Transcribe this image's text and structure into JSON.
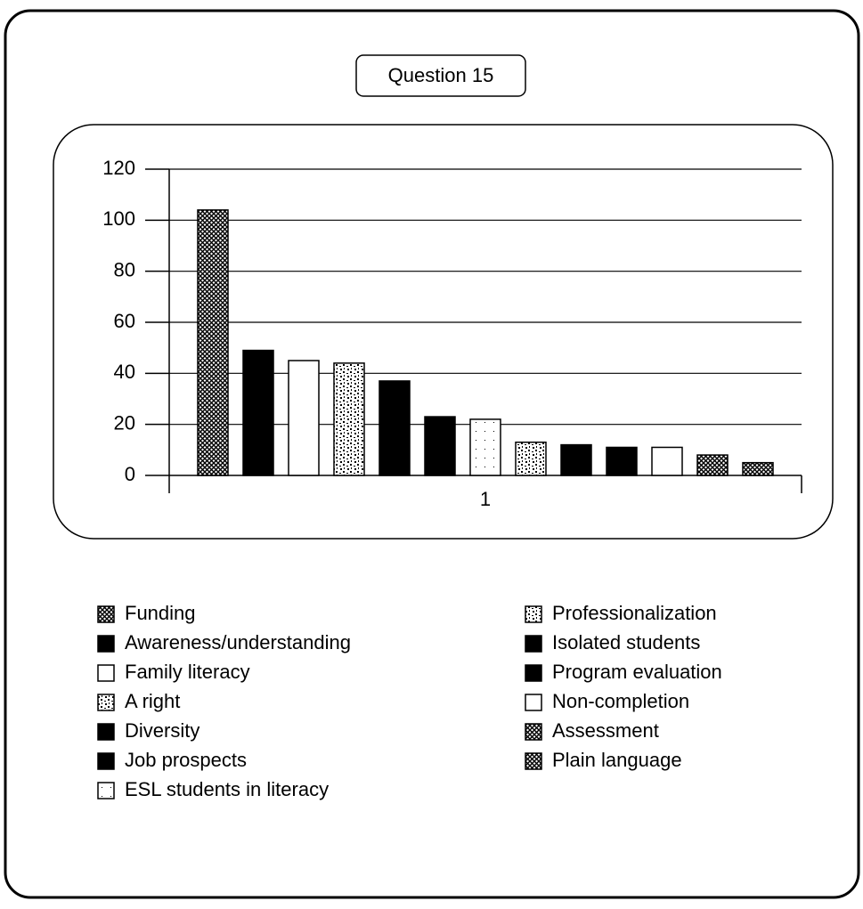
{
  "chart_data": {
    "type": "bar",
    "title": "Question 15",
    "categories": [
      "1"
    ],
    "ylim": [
      0,
      120
    ],
    "yticks": [
      0,
      20,
      40,
      60,
      80,
      100,
      120
    ],
    "grid": true,
    "legend": "bottom",
    "series": [
      {
        "name": "Funding",
        "color": "#000000",
        "pattern": "crosshatch",
        "values": [
          104
        ]
      },
      {
        "name": "Awareness/understanding",
        "color": "#000000",
        "pattern": "solid",
        "values": [
          49
        ]
      },
      {
        "name": "Family  literacy",
        "color": "#ffffff",
        "pattern": "solid",
        "values": [
          45
        ]
      },
      {
        "name": "A right",
        "color": "#000000",
        "pattern": "speckle",
        "values": [
          44
        ]
      },
      {
        "name": "Diversity",
        "color": "#000000",
        "pattern": "solid",
        "values": [
          37
        ]
      },
      {
        "name": "Job prospects",
        "color": "#000000",
        "pattern": "solid",
        "values": [
          23
        ]
      },
      {
        "name": "ESL students in literacy",
        "color": "#ffffff",
        "pattern": "dots",
        "values": [
          22
        ]
      },
      {
        "name": "Professionalization",
        "color": "#000000",
        "pattern": "speckle",
        "values": [
          13
        ]
      },
      {
        "name": "Isolated students",
        "color": "#000000",
        "pattern": "solid",
        "values": [
          12
        ]
      },
      {
        "name": "Program evaluation",
        "color": "#000000",
        "pattern": "solid",
        "values": [
          11
        ]
      },
      {
        "name": "Non-completion",
        "color": "#ffffff",
        "pattern": "solid",
        "values": [
          11
        ]
      },
      {
        "name": "Assessment",
        "color": "#000000",
        "pattern": "crosshatch",
        "values": [
          8
        ]
      },
      {
        "name": "Plain language",
        "color": "#000000",
        "pattern": "crosshatch",
        "values": [
          5
        ]
      }
    ]
  }
}
